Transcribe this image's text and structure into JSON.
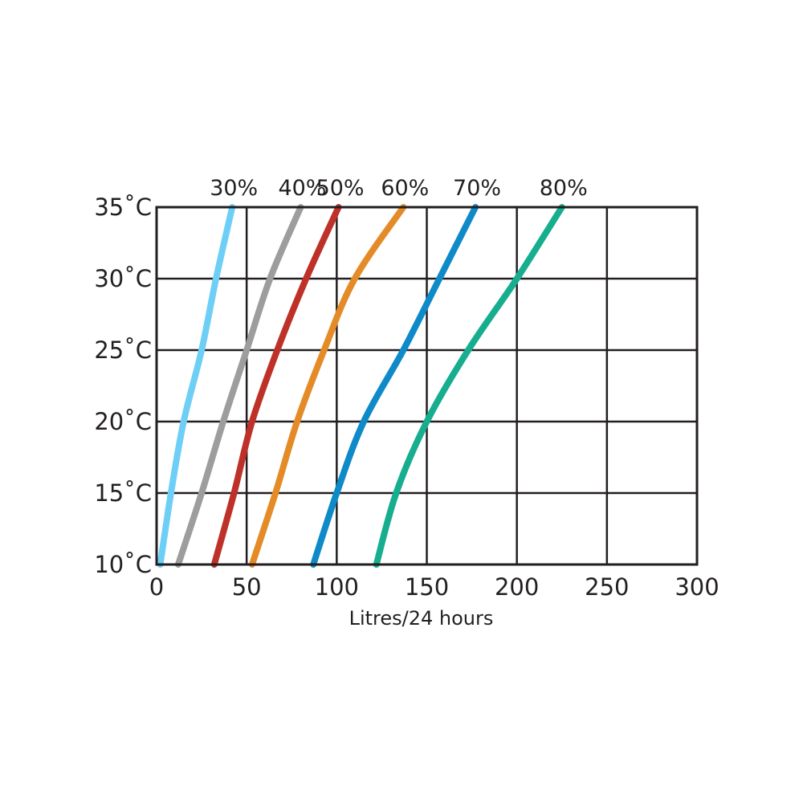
{
  "chart_data": {
    "type": "line",
    "title": "",
    "xlabel": "Litres/24 hours",
    "ylabel": "",
    "xlim": [
      0,
      300
    ],
    "ylim": [
      10,
      35
    ],
    "x_ticks": [
      0,
      50,
      100,
      150,
      200,
      250,
      300
    ],
    "y_ticks": [
      10,
      15,
      20,
      25,
      30,
      35
    ],
    "x_tick_labels": [
      "0",
      "50",
      "100",
      "150",
      "200",
      "250",
      "300"
    ],
    "y_tick_labels": [
      "10˚C",
      "15˚C",
      "20˚C",
      "25˚C",
      "30˚C",
      "35˚C"
    ],
    "grid": true,
    "legend": "series labels along top edge",
    "series": [
      {
        "name": "30%",
        "color": "#6dcff6",
        "points": [
          [
            2,
            10
          ],
          [
            8,
            15
          ],
          [
            15,
            20
          ],
          [
            25,
            25
          ],
          [
            33,
            30
          ],
          [
            42,
            35
          ]
        ]
      },
      {
        "name": "40%",
        "color": "#9d9d9d",
        "points": [
          [
            12,
            10
          ],
          [
            25,
            15
          ],
          [
            37,
            20
          ],
          [
            50,
            25
          ],
          [
            63,
            30
          ],
          [
            80,
            35
          ]
        ]
      },
      {
        "name": "50%",
        "color": "#be3128",
        "points": [
          [
            32,
            10
          ],
          [
            43,
            15
          ],
          [
            53,
            20
          ],
          [
            67,
            25
          ],
          [
            83,
            30
          ],
          [
            101,
            35
          ]
        ]
      },
      {
        "name": "60%",
        "color": "#e48b27",
        "points": [
          [
            53,
            10
          ],
          [
            66,
            15
          ],
          [
            78,
            20
          ],
          [
            93,
            25
          ],
          [
            110,
            30
          ],
          [
            137,
            35
          ]
        ]
      },
      {
        "name": "70%",
        "color": "#0e8ac9",
        "points": [
          [
            87,
            10
          ],
          [
            100,
            15
          ],
          [
            115,
            20
          ],
          [
            137,
            25
          ],
          [
            157,
            30
          ],
          [
            177,
            35
          ]
        ]
      },
      {
        "name": "80%",
        "color": "#16ae8e",
        "points": [
          [
            122,
            10
          ],
          [
            133,
            15
          ],
          [
            150,
            20
          ],
          [
            173,
            25
          ],
          [
            200,
            30
          ],
          [
            225,
            35
          ]
        ]
      }
    ]
  }
}
